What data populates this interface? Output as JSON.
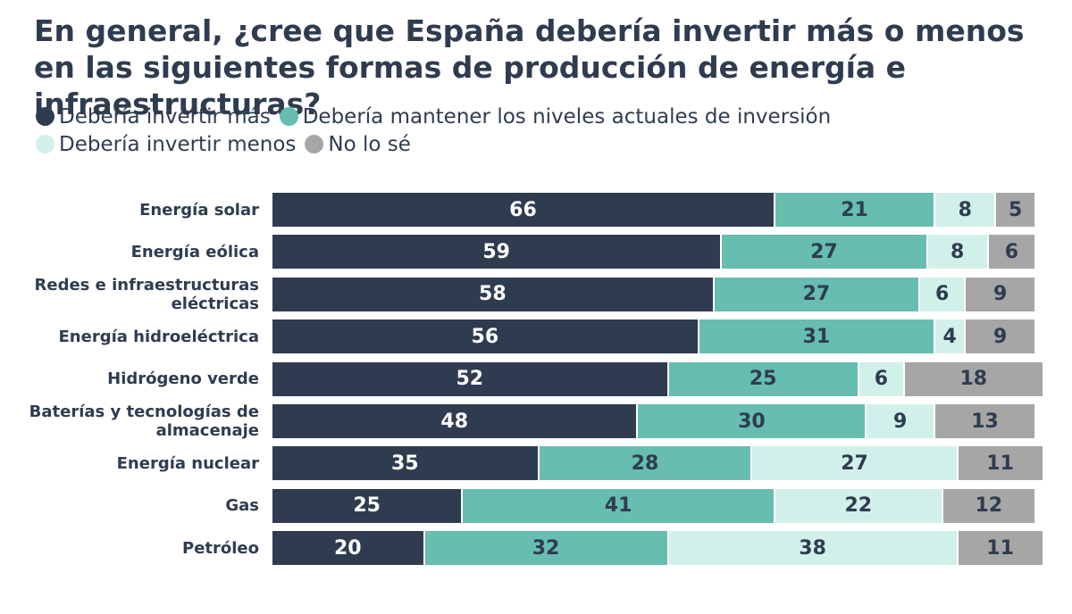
{
  "title": "En general, ¿cree que España debería invertir más o menos en las siguientes formas de producción de energía e infraestructuras?",
  "chart_data": {
    "type": "bar",
    "orientation": "horizontal",
    "stacked": true,
    "title": "En general, ¿cree que España debería invertir más o menos en las siguientes formas de producción de energía e infraestructuras?",
    "categories": [
      "Energía solar",
      "Energía eólica",
      "Redes e infraestructuras eléctricas",
      "Energía hidroeléctrica",
      "Hidrógeno verde",
      "Baterías y tecnologías de almacenaje",
      "Energía nuclear",
      "Gas",
      "Petróleo"
    ],
    "series": [
      {
        "name": "Debería invertir más",
        "color": "#2f3c50",
        "text_color": "#ffffff",
        "values": [
          66,
          59,
          58,
          56,
          52,
          48,
          35,
          25,
          20
        ]
      },
      {
        "name": "Debería mantener los niveles actuales de inversión",
        "color": "#66bdb0",
        "text_color": "#2f3c50",
        "values": [
          21,
          27,
          27,
          31,
          25,
          30,
          28,
          41,
          32
        ]
      },
      {
        "name": "Debería invertir menos",
        "color": "#d2f0ea",
        "text_color": "#2f3c50",
        "values": [
          8,
          8,
          6,
          4,
          6,
          9,
          27,
          22,
          38
        ]
      },
      {
        "name": "No lo sé",
        "color": "#a6a6a6",
        "text_color": "#2f3c50",
        "values": [
          5,
          6,
          9,
          9,
          18,
          13,
          11,
          12,
          11
        ]
      }
    ],
    "xlim": [
      0,
      100
    ],
    "legend_position": "top-left",
    "grid": false
  }
}
